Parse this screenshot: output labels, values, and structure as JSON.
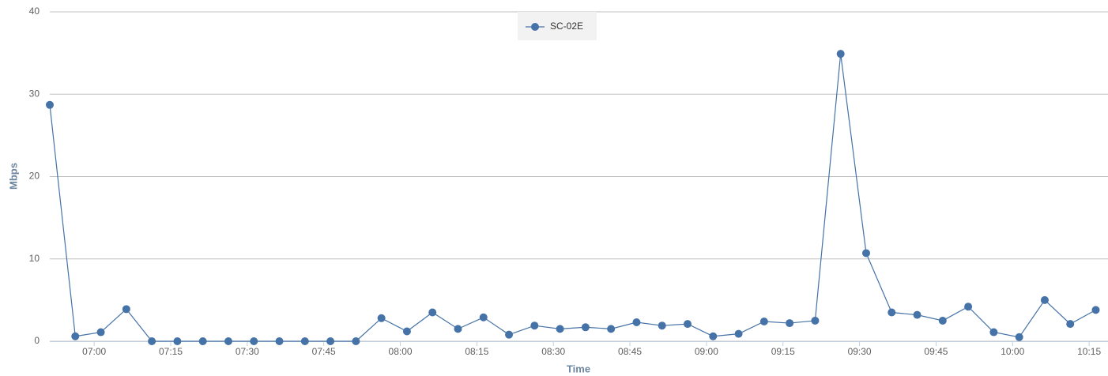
{
  "chart_data": {
    "type": "line",
    "legend": "top-center",
    "xlabel": "Time",
    "ylabel": "Mbps",
    "x": [
      411.3,
      416.3,
      421.3,
      426.3,
      431.3,
      436.3,
      441.3,
      446.3,
      451.3,
      456.3,
      461.3,
      466.3,
      471.3,
      476.3,
      481.3,
      486.3,
      491.3,
      496.3,
      501.3,
      506.3,
      511.3,
      516.3,
      521.3,
      526.3,
      531.3,
      536.3,
      541.3,
      546.3,
      551.3,
      556.3,
      561.3,
      566.3,
      571.3,
      576.3,
      581.3,
      586.3,
      591.3,
      596.3,
      601.3,
      606.3,
      611.3,
      616.3
    ],
    "series": [
      {
        "name": "SC-02E",
        "color": "#4572a7",
        "values": [
          28.7,
          0.6,
          1.1,
          3.9,
          0,
          0,
          0,
          0,
          0,
          0,
          0,
          0,
          0,
          2.8,
          1.2,
          3.5,
          1.5,
          2.9,
          0.8,
          1.9,
          1.5,
          1.7,
          1.5,
          2.3,
          1.9,
          2.1,
          0.6,
          0.9,
          2.4,
          2.2,
          2.5,
          34.9,
          10.7,
          3.5,
          3.2,
          2.5,
          4.2,
          1.1,
          0.5,
          5.0,
          2.1,
          3.8
        ]
      }
    ],
    "xlim": [
      411.3,
      618.7
    ],
    "xticks": [
      {
        "value": 420,
        "label": "07:00"
      },
      {
        "value": 435,
        "label": "07:15"
      },
      {
        "value": 450,
        "label": "07:30"
      },
      {
        "value": 465,
        "label": "07:45"
      },
      {
        "value": 480,
        "label": "08:00"
      },
      {
        "value": 495,
        "label": "08:15"
      },
      {
        "value": 510,
        "label": "08:30"
      },
      {
        "value": 525,
        "label": "08:45"
      },
      {
        "value": 540,
        "label": "09:00"
      },
      {
        "value": 555,
        "label": "09:15"
      },
      {
        "value": 570,
        "label": "09:30"
      },
      {
        "value": 585,
        "label": "09:45"
      },
      {
        "value": 600,
        "label": "10:00"
      },
      {
        "value": 615,
        "label": "10:15"
      }
    ],
    "ylim": [
      0,
      40
    ],
    "yticks": [
      0,
      10,
      20,
      30,
      40
    ],
    "grid": true
  }
}
